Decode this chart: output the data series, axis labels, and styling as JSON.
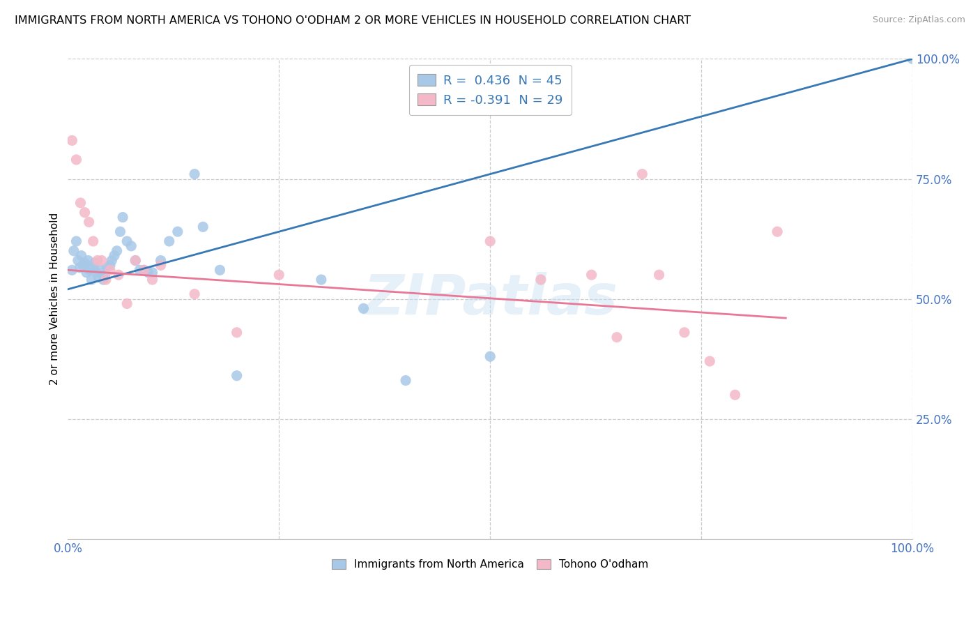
{
  "title": "IMMIGRANTS FROM NORTH AMERICA VS TOHONO O'ODHAM 2 OR MORE VEHICLES IN HOUSEHOLD CORRELATION CHART",
  "source": "Source: ZipAtlas.com",
  "ylabel": "2 or more Vehicles in Household",
  "watermark": "ZIPatlas",
  "xlim": [
    0.0,
    1.0
  ],
  "ylim": [
    0.0,
    1.0
  ],
  "xticks": [
    0.0,
    0.25,
    0.5,
    0.75,
    1.0
  ],
  "xticklabels": [
    "0.0%",
    "",
    "",
    "",
    "100.0%"
  ],
  "yticks": [
    0.25,
    0.5,
    0.75,
    1.0
  ],
  "yticklabels": [
    "25.0%",
    "50.0%",
    "75.0%",
    "100.0%"
  ],
  "blue_R": 0.436,
  "blue_N": 45,
  "pink_R": -0.391,
  "pink_N": 29,
  "blue_color": "#a8c8e8",
  "pink_color": "#f4b8c8",
  "blue_line_color": "#3878b4",
  "pink_line_color": "#e87898",
  "tick_color": "#4472c4",
  "legend_label_blue": "Immigrants from North America",
  "legend_label_pink": "Tohono O'odham",
  "blue_scatter_x": [
    0.005,
    0.007,
    0.01,
    0.012,
    0.014,
    0.016,
    0.018,
    0.02,
    0.022,
    0.024,
    0.026,
    0.028,
    0.03,
    0.032,
    0.034,
    0.036,
    0.04,
    0.042,
    0.044,
    0.046,
    0.05,
    0.052,
    0.055,
    0.058,
    0.062,
    0.065,
    0.07,
    0.075,
    0.08,
    0.085,
    0.09,
    0.095,
    0.1,
    0.11,
    0.12,
    0.13,
    0.15,
    0.16,
    0.18,
    0.2,
    0.3,
    0.35,
    0.4,
    0.5,
    1.0
  ],
  "blue_scatter_y": [
    0.56,
    0.6,
    0.62,
    0.58,
    0.565,
    0.59,
    0.57,
    0.575,
    0.555,
    0.58,
    0.56,
    0.54,
    0.565,
    0.575,
    0.555,
    0.545,
    0.56,
    0.54,
    0.55,
    0.565,
    0.57,
    0.58,
    0.59,
    0.6,
    0.64,
    0.67,
    0.62,
    0.61,
    0.58,
    0.56,
    0.56,
    0.555,
    0.555,
    0.58,
    0.62,
    0.64,
    0.76,
    0.65,
    0.56,
    0.34,
    0.54,
    0.48,
    0.33,
    0.38,
    1.0
  ],
  "pink_scatter_x": [
    0.005,
    0.01,
    0.015,
    0.02,
    0.025,
    0.03,
    0.035,
    0.04,
    0.045,
    0.05,
    0.06,
    0.07,
    0.08,
    0.09,
    0.1,
    0.11,
    0.15,
    0.2,
    0.25,
    0.5,
    0.56,
    0.62,
    0.65,
    0.68,
    0.7,
    0.73,
    0.76,
    0.79,
    0.84
  ],
  "pink_scatter_y": [
    0.83,
    0.79,
    0.7,
    0.68,
    0.66,
    0.62,
    0.58,
    0.58,
    0.54,
    0.56,
    0.55,
    0.49,
    0.58,
    0.56,
    0.54,
    0.57,
    0.51,
    0.43,
    0.55,
    0.62,
    0.54,
    0.55,
    0.42,
    0.76,
    0.55,
    0.43,
    0.37,
    0.3,
    0.64
  ],
  "blue_line_x0": 0.0,
  "blue_line_y0": 0.52,
  "blue_line_x1": 1.0,
  "blue_line_y1": 1.0,
  "pink_line_x0": 0.0,
  "pink_line_y0": 0.56,
  "pink_line_x1": 0.85,
  "pink_line_y1": 0.46
}
